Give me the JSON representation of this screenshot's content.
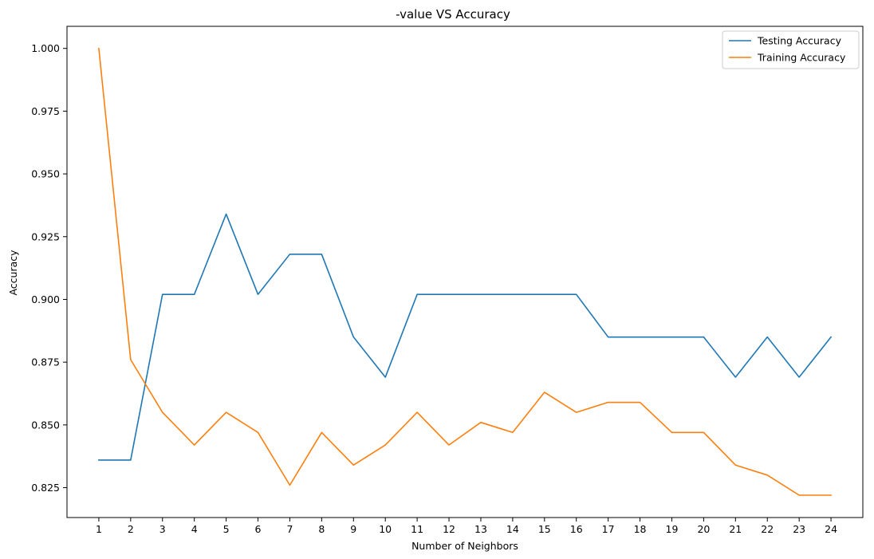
{
  "chart_data": {
    "type": "line",
    "title": "-value VS Accuracy",
    "xlabel": "Number of Neighbors",
    "ylabel": "Accuracy",
    "x": [
      1,
      2,
      3,
      4,
      5,
      6,
      7,
      8,
      9,
      10,
      11,
      12,
      13,
      14,
      15,
      16,
      17,
      18,
      19,
      20,
      21,
      22,
      23,
      24
    ],
    "xticks": [
      "1",
      "2",
      "3",
      "4",
      "5",
      "6",
      "7",
      "8",
      "9",
      "10",
      "11",
      "12",
      "13",
      "14",
      "15",
      "16",
      "17",
      "18",
      "19",
      "20",
      "21",
      "22",
      "23",
      "24"
    ],
    "yticks": [
      0.825,
      0.85,
      0.875,
      0.9,
      0.925,
      0.95,
      0.975,
      1.0
    ],
    "ytick_labels": [
      "0.825",
      "0.850",
      "0.875",
      "0.900",
      "0.925",
      "0.950",
      "0.975",
      "1.000"
    ],
    "xlim": [
      0.0,
      25.0
    ],
    "ylim": [
      0.8131,
      1.0088
    ],
    "grid": false,
    "legend_position": "top-right",
    "series": [
      {
        "name": "Testing Accuracy",
        "color": "#1f77b4",
        "values": [
          0.836,
          0.836,
          0.902,
          0.902,
          0.934,
          0.902,
          0.918,
          0.918,
          0.885,
          0.869,
          0.902,
          0.902,
          0.902,
          0.902,
          0.902,
          0.902,
          0.885,
          0.885,
          0.885,
          0.885,
          0.869,
          0.885,
          0.869,
          0.885
        ]
      },
      {
        "name": "Training Accuracy",
        "color": "#ff7f0e",
        "values": [
          1.0,
          0.876,
          0.855,
          0.842,
          0.855,
          0.847,
          0.826,
          0.847,
          0.834,
          0.842,
          0.855,
          0.842,
          0.851,
          0.847,
          0.863,
          0.855,
          0.859,
          0.859,
          0.847,
          0.847,
          0.834,
          0.83,
          0.822,
          0.822
        ]
      }
    ]
  }
}
